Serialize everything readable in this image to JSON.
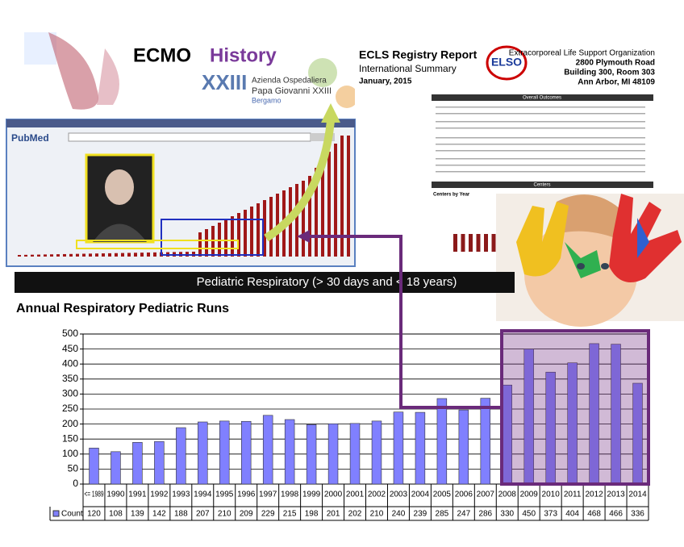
{
  "ecmo": {
    "title_a": "ECMO",
    "title_b": "History",
    "hospital_1": "Azienda Ospedaliera",
    "hospital_2": "Papa Giovanni XXIII",
    "hospital_3": "Bergamo"
  },
  "report": {
    "title": "ECLS Registry Report",
    "subtitle": "International Summary",
    "date": "January, 2015",
    "logo": "ELSO",
    "org": "Extracorporeal Life Support Organization",
    "address_1": "2800 Plymouth Road",
    "address_2": "Building 300, Room 303",
    "address_3": "Ann Arbor, MI 48109",
    "section_1": "Overall Outcomes",
    "section_2": "Centers",
    "section_3": "Centers by Year"
  },
  "pubmed": {
    "logo": "PubMed"
  },
  "banner": "Pediatric Respiratory (> 30 days and < 18 years)",
  "chart_data": {
    "type": "bar",
    "title": "Annual Respiratory Pediatric Runs",
    "categories": [
      "<= 1989",
      "1990",
      "1991",
      "1992",
      "1993",
      "1994",
      "1995",
      "1996",
      "1997",
      "1998",
      "1999",
      "2000",
      "2001",
      "2002",
      "2003",
      "2004",
      "2005",
      "2006",
      "2007",
      "2008",
      "2009",
      "2010",
      "2011",
      "2012",
      "2013",
      "2014"
    ],
    "series": [
      {
        "name": "Count",
        "color": "#8080ff",
        "values": [
          120,
          108,
          139,
          142,
          188,
          207,
          210,
          209,
          229,
          215,
          198,
          201,
          202,
          210,
          240,
          239,
          285,
          247,
          286,
          330,
          450,
          373,
          404,
          468,
          466,
          336
        ]
      }
    ],
    "ylim": [
      0,
      500
    ],
    "yticks": [
      0,
      50,
      100,
      150,
      200,
      250,
      300,
      350,
      400,
      450,
      500
    ],
    "grid": true
  }
}
